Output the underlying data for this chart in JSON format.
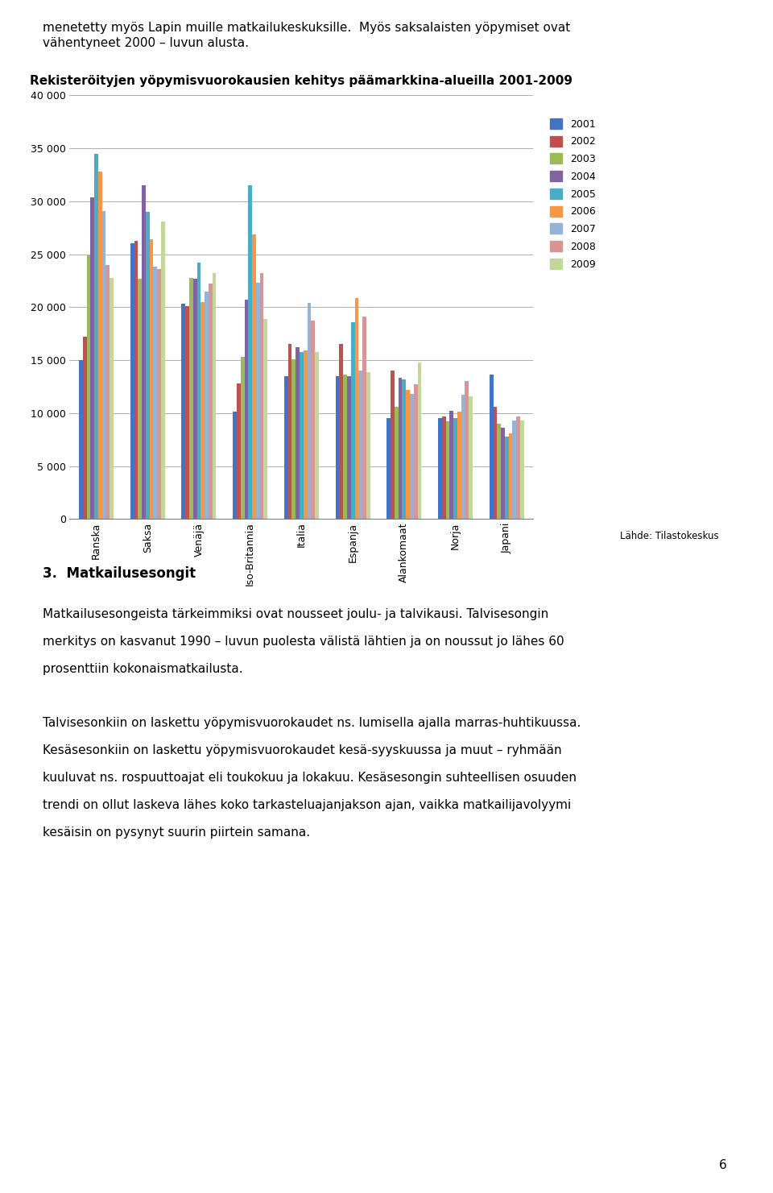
{
  "title": "Rekisteröityjen yöpymisvuorokausien kehitys päämarkkina-alueilla 2001-2009",
  "categories": [
    "Ranska",
    "Saksa",
    "Venäjä",
    "Iso-Britannia",
    "Italia",
    "Espanja",
    "Alankomaat",
    "Norja",
    "Japani"
  ],
  "years": [
    "2001",
    "2002",
    "2003",
    "2004",
    "2005",
    "2006",
    "2007",
    "2008",
    "2009"
  ],
  "bar_colors": [
    "#4472c4",
    "#c0504d",
    "#9bbb59",
    "#8064a2",
    "#4bacc6",
    "#f79646",
    "#95b3d7",
    "#d99594",
    "#c4d79b"
  ],
  "source_label": "Lähde: Tilastokeskus",
  "data": {
    "Ranska": [
      15000,
      17200,
      24900,
      30400,
      34500,
      32800,
      29100,
      24000,
      22800
    ],
    "Saksa": [
      26000,
      26300,
      22700,
      31500,
      29000,
      26400,
      23800,
      23600,
      28100
    ],
    "Venäjä": [
      20300,
      20100,
      22800,
      22700,
      24200,
      20500,
      21500,
      22200,
      23200
    ],
    "Iso-Britannia": [
      10100,
      12800,
      15300,
      20700,
      31500,
      26900,
      22300,
      23200,
      18900
    ],
    "Italia": [
      13500,
      16500,
      15100,
      16200,
      15800,
      15900,
      20400,
      18700,
      15800
    ],
    "Espanja": [
      13500,
      16500,
      13600,
      13500,
      18600,
      20900,
      14000,
      19100,
      13900
    ],
    "Alankomaat": [
      9500,
      14000,
      10600,
      13300,
      13200,
      12200,
      11800,
      12700,
      14800
    ],
    "Norja": [
      9500,
      9700,
      9200,
      10200,
      9500,
      10100,
      11700,
      13000,
      11600
    ],
    "Japani": [
      13600,
      10600,
      9000,
      8600,
      7800,
      8100,
      9300,
      9700,
      9300
    ]
  },
  "ylim": [
    0,
    40000
  ],
  "yticks": [
    0,
    5000,
    10000,
    15000,
    20000,
    25000,
    30000,
    35000,
    40000
  ],
  "ytick_labels": [
    "0",
    "5 000",
    "10 000",
    "15 000",
    "20 000",
    "25 000",
    "30 000",
    "35 000",
    "40 000"
  ],
  "top_line1": "menetetty myös Lapin muille matkailukeskuksille.  Myös saksalaisten yöpymiset ovat",
  "top_line2": "vähentyneet 2000 – luvun alusta.",
  "section_header": "3.  Matkailusesongit",
  "para1_line1": "Matkailusesongeista tärkeimmiksi ovat nousseet joulu- ja talvikausi. Talvisesongin",
  "para1_line2": "merkitys on kasvanut 1990 – luvun puolesta välistä lähtien ja on noussut jo lähes 60",
  "para1_line3": "prosenttiin kokonaismatkailusta.",
  "para2_line1": "Talvisesonkiin on laskettu yöpymisvuorokaudet ns. lumisella ajalla marras-huhtikuussa.",
  "para2_line2": "Kesäsesonkiin on laskettu yöpymisvuorokaudet kesä-syyskuussa ja muut – ryhmään",
  "para2_line3": "kuuluvat ns. rospuuttoajat eli toukokuu ja lokakuu. Kesäsesongin suhteellisen osuuden",
  "para2_line4": "trendi on ollut laskeva lähes koko tarkasteluajanjakson ajan, vaikka matkailijavolyymi",
  "para2_line5": "kesäisin on pysynyt suurin piirtein samana.",
  "page_num": "6"
}
